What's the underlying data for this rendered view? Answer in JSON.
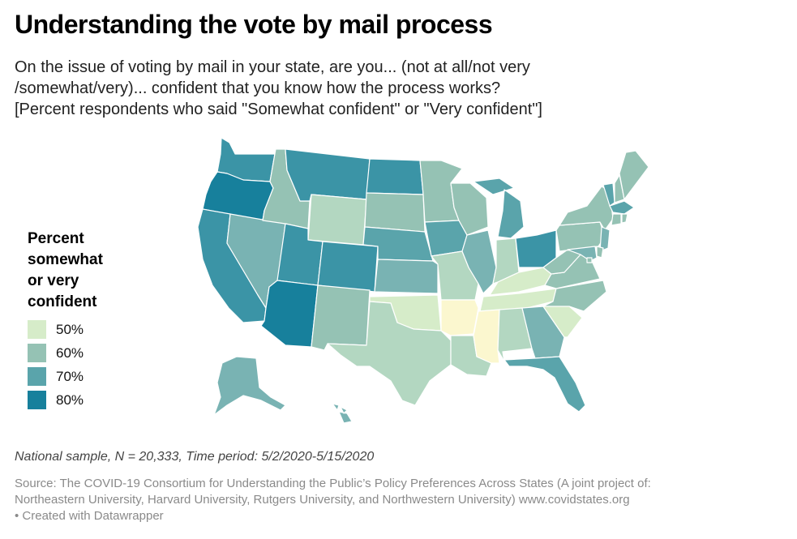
{
  "title": "Understanding the vote by mail process",
  "subtitle_lines": [
    "On the issue of voting by mail in your state, are you... (not at all/not very",
    "/somewhat/very)... confident that you know how the process works?",
    "[Percent respondents who said \"Somewhat confident\" or \"Very confident\"]"
  ],
  "legend": {
    "title_lines": [
      "Percent",
      "somewhat",
      "or very",
      "confident"
    ],
    "items": [
      {
        "label": "50%",
        "color": "#d6ecc9"
      },
      {
        "label": "60%",
        "color": "#95c2b4"
      },
      {
        "label": "70%",
        "color": "#5aa4ab"
      },
      {
        "label": "80%",
        "color": "#17809c"
      }
    ]
  },
  "notes": "National sample, N = 20,333, Time period: 5/2/2020-5/15/2020",
  "source_lines": [
    "Source: The COVID-19 Consortium for Understanding the Public’s Policy Preferences Across States (A joint project of:",
    "Northeastern University, Harvard University, Rutgers University, and Northwestern University) www.covidstates.org",
    " • Created with Datawrapper"
  ],
  "map_data": {
    "colors": {
      "c45": "#fbf7cf",
      "c50": "#d6ecc9",
      "c55": "#b3d7c1",
      "c60": "#95c2b4",
      "c65": "#79b3b3",
      "c70": "#5aa4ab",
      "c75": "#3b94a6",
      "c80": "#17809c"
    },
    "states": [
      {
        "id": "WA",
        "cls": "c75"
      },
      {
        "id": "OR",
        "cls": "c80"
      },
      {
        "id": "CA",
        "cls": "c75"
      },
      {
        "id": "NV",
        "cls": "c65"
      },
      {
        "id": "ID",
        "cls": "c60"
      },
      {
        "id": "MT",
        "cls": "c75"
      },
      {
        "id": "WY",
        "cls": "c55"
      },
      {
        "id": "UT",
        "cls": "c75"
      },
      {
        "id": "AZ",
        "cls": "c80"
      },
      {
        "id": "CO",
        "cls": "c75"
      },
      {
        "id": "NM",
        "cls": "c60"
      },
      {
        "id": "ND",
        "cls": "c75"
      },
      {
        "id": "SD",
        "cls": "c60"
      },
      {
        "id": "NE",
        "cls": "c70"
      },
      {
        "id": "KS",
        "cls": "c65"
      },
      {
        "id": "OK",
        "cls": "c50"
      },
      {
        "id": "TX",
        "cls": "c55"
      },
      {
        "id": "MN",
        "cls": "c60"
      },
      {
        "id": "IA",
        "cls": "c70"
      },
      {
        "id": "MO",
        "cls": "c55"
      },
      {
        "id": "AR",
        "cls": "c45"
      },
      {
        "id": "LA",
        "cls": "c55"
      },
      {
        "id": "WI",
        "cls": "c60"
      },
      {
        "id": "IL",
        "cls": "c65"
      },
      {
        "id": "MI",
        "cls": "c70"
      },
      {
        "id": "IN",
        "cls": "c55"
      },
      {
        "id": "OH",
        "cls": "c75"
      },
      {
        "id": "KY",
        "cls": "c50"
      },
      {
        "id": "TN",
        "cls": "c50"
      },
      {
        "id": "MS",
        "cls": "c45"
      },
      {
        "id": "AL",
        "cls": "c55"
      },
      {
        "id": "GA",
        "cls": "c65"
      },
      {
        "id": "FL",
        "cls": "c70"
      },
      {
        "id": "SC",
        "cls": "c50"
      },
      {
        "id": "NC",
        "cls": "c60"
      },
      {
        "id": "VA",
        "cls": "c60"
      },
      {
        "id": "WV",
        "cls": "c60"
      },
      {
        "id": "PA",
        "cls": "c60"
      },
      {
        "id": "NY",
        "cls": "c60"
      },
      {
        "id": "VT",
        "cls": "c70"
      },
      {
        "id": "NH",
        "cls": "c60"
      },
      {
        "id": "ME",
        "cls": "c60"
      },
      {
        "id": "MA",
        "cls": "c70"
      },
      {
        "id": "CT",
        "cls": "c60"
      },
      {
        "id": "RI",
        "cls": "c60"
      },
      {
        "id": "NJ",
        "cls": "c65"
      },
      {
        "id": "DE",
        "cls": "c60"
      },
      {
        "id": "MD",
        "cls": "c65"
      },
      {
        "id": "DC",
        "cls": "c60"
      },
      {
        "id": "AK",
        "cls": "c65"
      },
      {
        "id": "HI",
        "cls": "c65"
      }
    ]
  }
}
